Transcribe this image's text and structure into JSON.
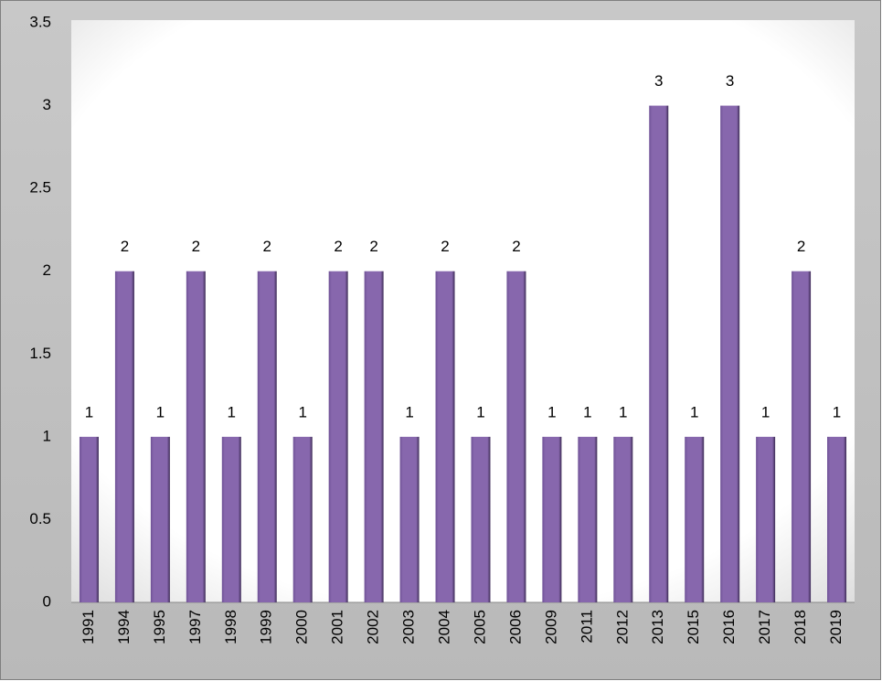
{
  "chart_data": {
    "type": "bar",
    "categories": [
      "1991",
      "1994",
      "1995",
      "1997",
      "1998",
      "1999",
      "2000",
      "2001",
      "2002",
      "2003",
      "2004",
      "2005",
      "2006",
      "2009",
      "2011",
      "2012",
      "2013",
      "2015",
      "2016",
      "2017",
      "2018",
      "2019"
    ],
    "values": [
      1,
      2,
      1,
      2,
      1,
      2,
      1,
      2,
      2,
      1,
      2,
      1,
      2,
      1,
      1,
      1,
      3,
      1,
      3,
      1,
      2,
      1
    ],
    "color": "#8767ad",
    "ylim": [
      0,
      3.5
    ],
    "yticks": [
      0,
      0.5,
      1,
      1.5,
      2,
      2.5,
      3,
      3.5
    ],
    "grid": false
  }
}
